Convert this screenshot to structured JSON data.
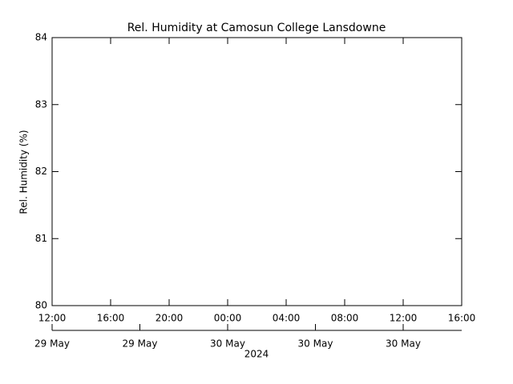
{
  "chart_data": {
    "type": "line",
    "title": "Rel. Humidity at Camosun College Lansdowne",
    "ylabel": "Rel. Humidity (%)",
    "ylim": [
      80,
      84
    ],
    "yticks": [
      80,
      81,
      82,
      83,
      84
    ],
    "xlim": [
      "2024-05-29T12:00",
      "2024-05-30T16:00"
    ],
    "xticks": [
      {
        "value": "2024-05-29T12:00",
        "label": "12:00"
      },
      {
        "value": "2024-05-29T16:00",
        "label": "16:00"
      },
      {
        "value": "2024-05-29T20:00",
        "label": "20:00"
      },
      {
        "value": "2024-05-30T00:00",
        "label": "00:00"
      },
      {
        "value": "2024-05-30T04:00",
        "label": "04:00"
      },
      {
        "value": "2024-05-30T08:00",
        "label": "08:00"
      },
      {
        "value": "2024-05-30T12:00",
        "label": "12:00"
      },
      {
        "value": "2024-05-30T16:00",
        "label": "16:00"
      }
    ],
    "xticks_days": [
      {
        "value": "2024-05-29T12:00",
        "label": "29 May"
      },
      {
        "value": "2024-05-29T18:00",
        "label": "29 May"
      },
      {
        "value": "2024-05-30T00:00",
        "label": "30 May"
      },
      {
        "value": "2024-05-30T06:00",
        "label": "30 May"
      },
      {
        "value": "2024-05-30T12:00",
        "label": "30 May"
      }
    ],
    "xlabel": "2024",
    "series": []
  }
}
